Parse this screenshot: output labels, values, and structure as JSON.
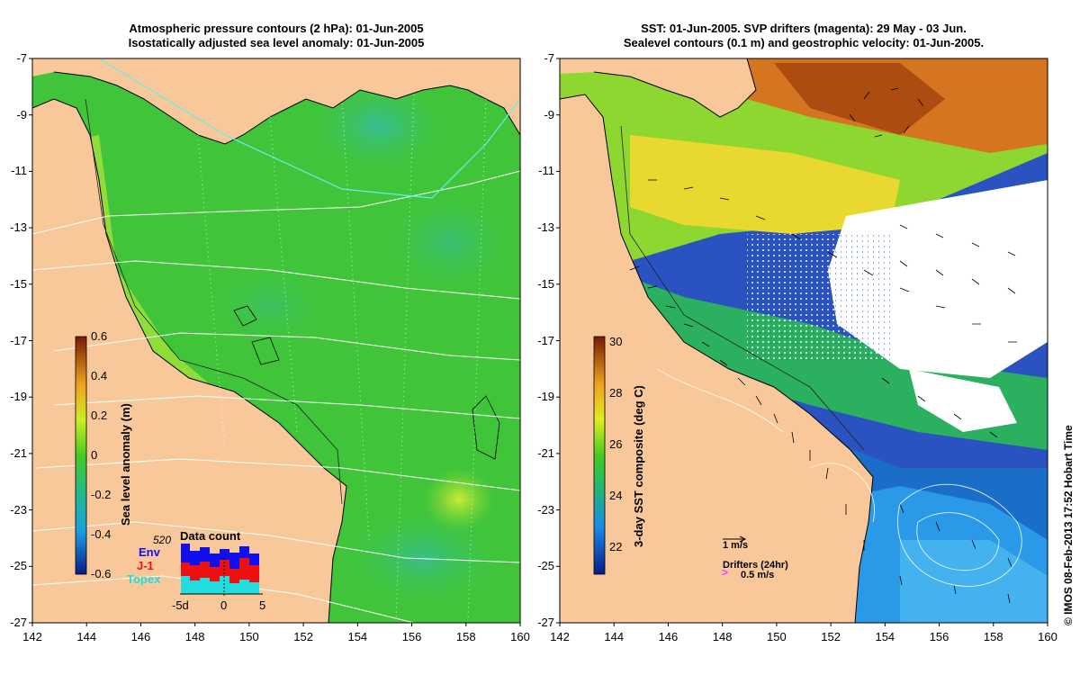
{
  "left_panel": {
    "title_line1": "Atmospheric pressure contours (2 hPa): 01-Jun-2005",
    "title_line2": "Isostatically adjusted sea level anomaly: 01-Jun-2005",
    "y_ticks": [
      "-7",
      "-9",
      "-11",
      "-13",
      "-15",
      "-17",
      "-19",
      "-21",
      "-23",
      "-25",
      "-27"
    ],
    "x_ticks": [
      "142",
      "144",
      "146",
      "148",
      "150",
      "152",
      "154",
      "156",
      "158",
      "160"
    ],
    "colorbar": {
      "label": "Sea level anomaly (m)",
      "ticks": [
        "0.6",
        "0.4",
        "0.2",
        "0",
        "-0.2",
        "-0.4",
        "-0.6"
      ]
    },
    "inset": {
      "title": "Data count",
      "max_label": "520",
      "legend": [
        {
          "name": "Env",
          "color": "#1010ee"
        },
        {
          "name": "J-1",
          "color": "#ee1010"
        },
        {
          "name": "Topex",
          "color": "#22dddd"
        }
      ],
      "x_ticks": [
        "-5d",
        "0",
        "5"
      ]
    }
  },
  "right_panel": {
    "title_line1": "SST: 01-Jun-2005. SVP drifters (magenta): 29 May - 03 Jun.",
    "title_line2": "Sealevel contours (0.1 m) and geostrophic velocity: 01-Jun-2005.",
    "y_ticks": [
      "-7",
      "-9",
      "-11",
      "-13",
      "-15",
      "-17",
      "-19",
      "-21",
      "-23",
      "-25",
      "-27"
    ],
    "x_ticks": [
      "142",
      "144",
      "146",
      "148",
      "150",
      "152",
      "154",
      "156",
      "158",
      "160"
    ],
    "colorbar": {
      "label": "3-day SST composite (deg C)",
      "ticks": [
        "30",
        "28",
        "26",
        "24",
        "22"
      ]
    },
    "velocity_scale_label": "1 m/s",
    "drifters_label": "Drifters (24hr)",
    "drifters_speed_label": "0.5 m/s"
  },
  "credit": "© IMOS 08-Feb-2013 17:52 Hobart Time",
  "colors": {
    "land": "#f8c89a",
    "sla_green": "#44cc33",
    "sla_yellow": "#bbee33",
    "sst_orange": "#d97a1f",
    "sst_blue": "#1a3fb0",
    "contour_white": "#ffffff",
    "contour_cyan": "#66eeee"
  }
}
